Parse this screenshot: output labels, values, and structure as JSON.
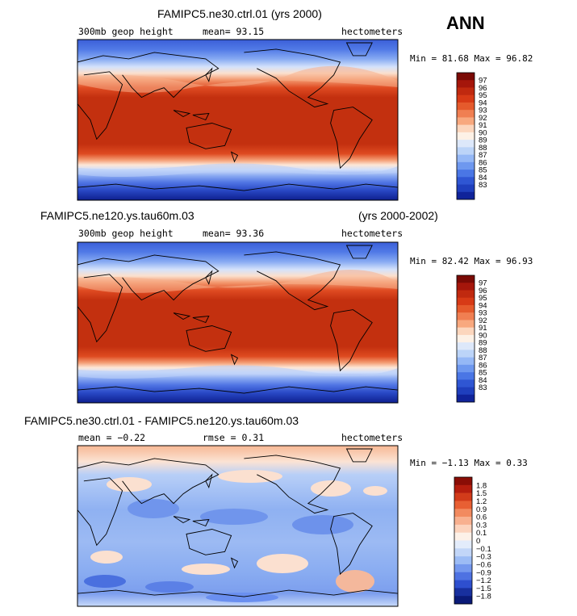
{
  "corner_label": "ANN",
  "panels": [
    {
      "title": "FAMIPC5.ne30.ctrl.01 (yrs 2000)",
      "title_right": "",
      "field": "300mb geop height",
      "stat1": "mean=  93.15",
      "stat2": "",
      "units": "hectometers",
      "minmax": "Min =  81.68 Max =  96.82",
      "colorbar": {
        "labels": [
          "97",
          "96",
          "95",
          "94",
          "93",
          "92",
          "91",
          "90",
          "89",
          "88",
          "87",
          "86",
          "85",
          "84",
          "83"
        ],
        "colors": [
          "#7a0a05",
          "#a5160b",
          "#c0290f",
          "#d73a16",
          "#e55a2c",
          "#f07f52",
          "#f8a87e",
          "#fcd6bd",
          "#fdf1e6",
          "#dde8fa",
          "#bcd4f8",
          "#95b8f6",
          "#6e98ef",
          "#4a76e5",
          "#2f56d3",
          "#1f3fbd",
          "#10239a"
        ]
      }
    },
    {
      "title": "FAMIPC5.ne120.ys.tau60m.03",
      "title_right": "(yrs 2000-2002)",
      "field": "300mb geop height",
      "stat1": "mean=  93.36",
      "stat2": "",
      "units": "hectometers",
      "minmax": "Min =  82.42 Max =  96.93",
      "colorbar": {
        "labels": [
          "97",
          "96",
          "95",
          "94",
          "93",
          "92",
          "91",
          "90",
          "89",
          "88",
          "87",
          "86",
          "85",
          "84",
          "83"
        ],
        "colors": [
          "#7a0a05",
          "#a5160b",
          "#c0290f",
          "#d73a16",
          "#e55a2c",
          "#f07f52",
          "#f8a87e",
          "#fcd6bd",
          "#fdf1e6",
          "#dde8fa",
          "#bcd4f8",
          "#95b8f6",
          "#6e98ef",
          "#4a76e5",
          "#2f56d3",
          "#1f3fbd",
          "#10239a"
        ]
      }
    },
    {
      "title": "FAMIPC5.ne30.ctrl.01 - FAMIPC5.ne120.ys.tau60m.03",
      "title_right": "",
      "field": "",
      "stat1": "mean =  −0.22",
      "stat2": "rmse =   0.31",
      "units": "hectometers",
      "minmax": "Min =  −1.13 Max =   0.33",
      "colorbar": {
        "labels": [
          "1.8",
          "1.5",
          "1.2",
          "0.9",
          "0.6",
          "0.3",
          "0.1",
          "0",
          "−0.1",
          "−0.3",
          "−0.6",
          "−0.9",
          "−1.2",
          "−1.5",
          "−1.8"
        ],
        "colors": [
          "#8a0d06",
          "#b51d0e",
          "#d23b1a",
          "#e85f33",
          "#f28a5f",
          "#f8b08f",
          "#fcd3bd",
          "#fdf1e8",
          "#e3ecfb",
          "#c2d6f8",
          "#9cbcf5",
          "#7498ee",
          "#4e72e2",
          "#2e4fcf",
          "#18309f",
          "#0a1a78"
        ]
      }
    }
  ]
}
